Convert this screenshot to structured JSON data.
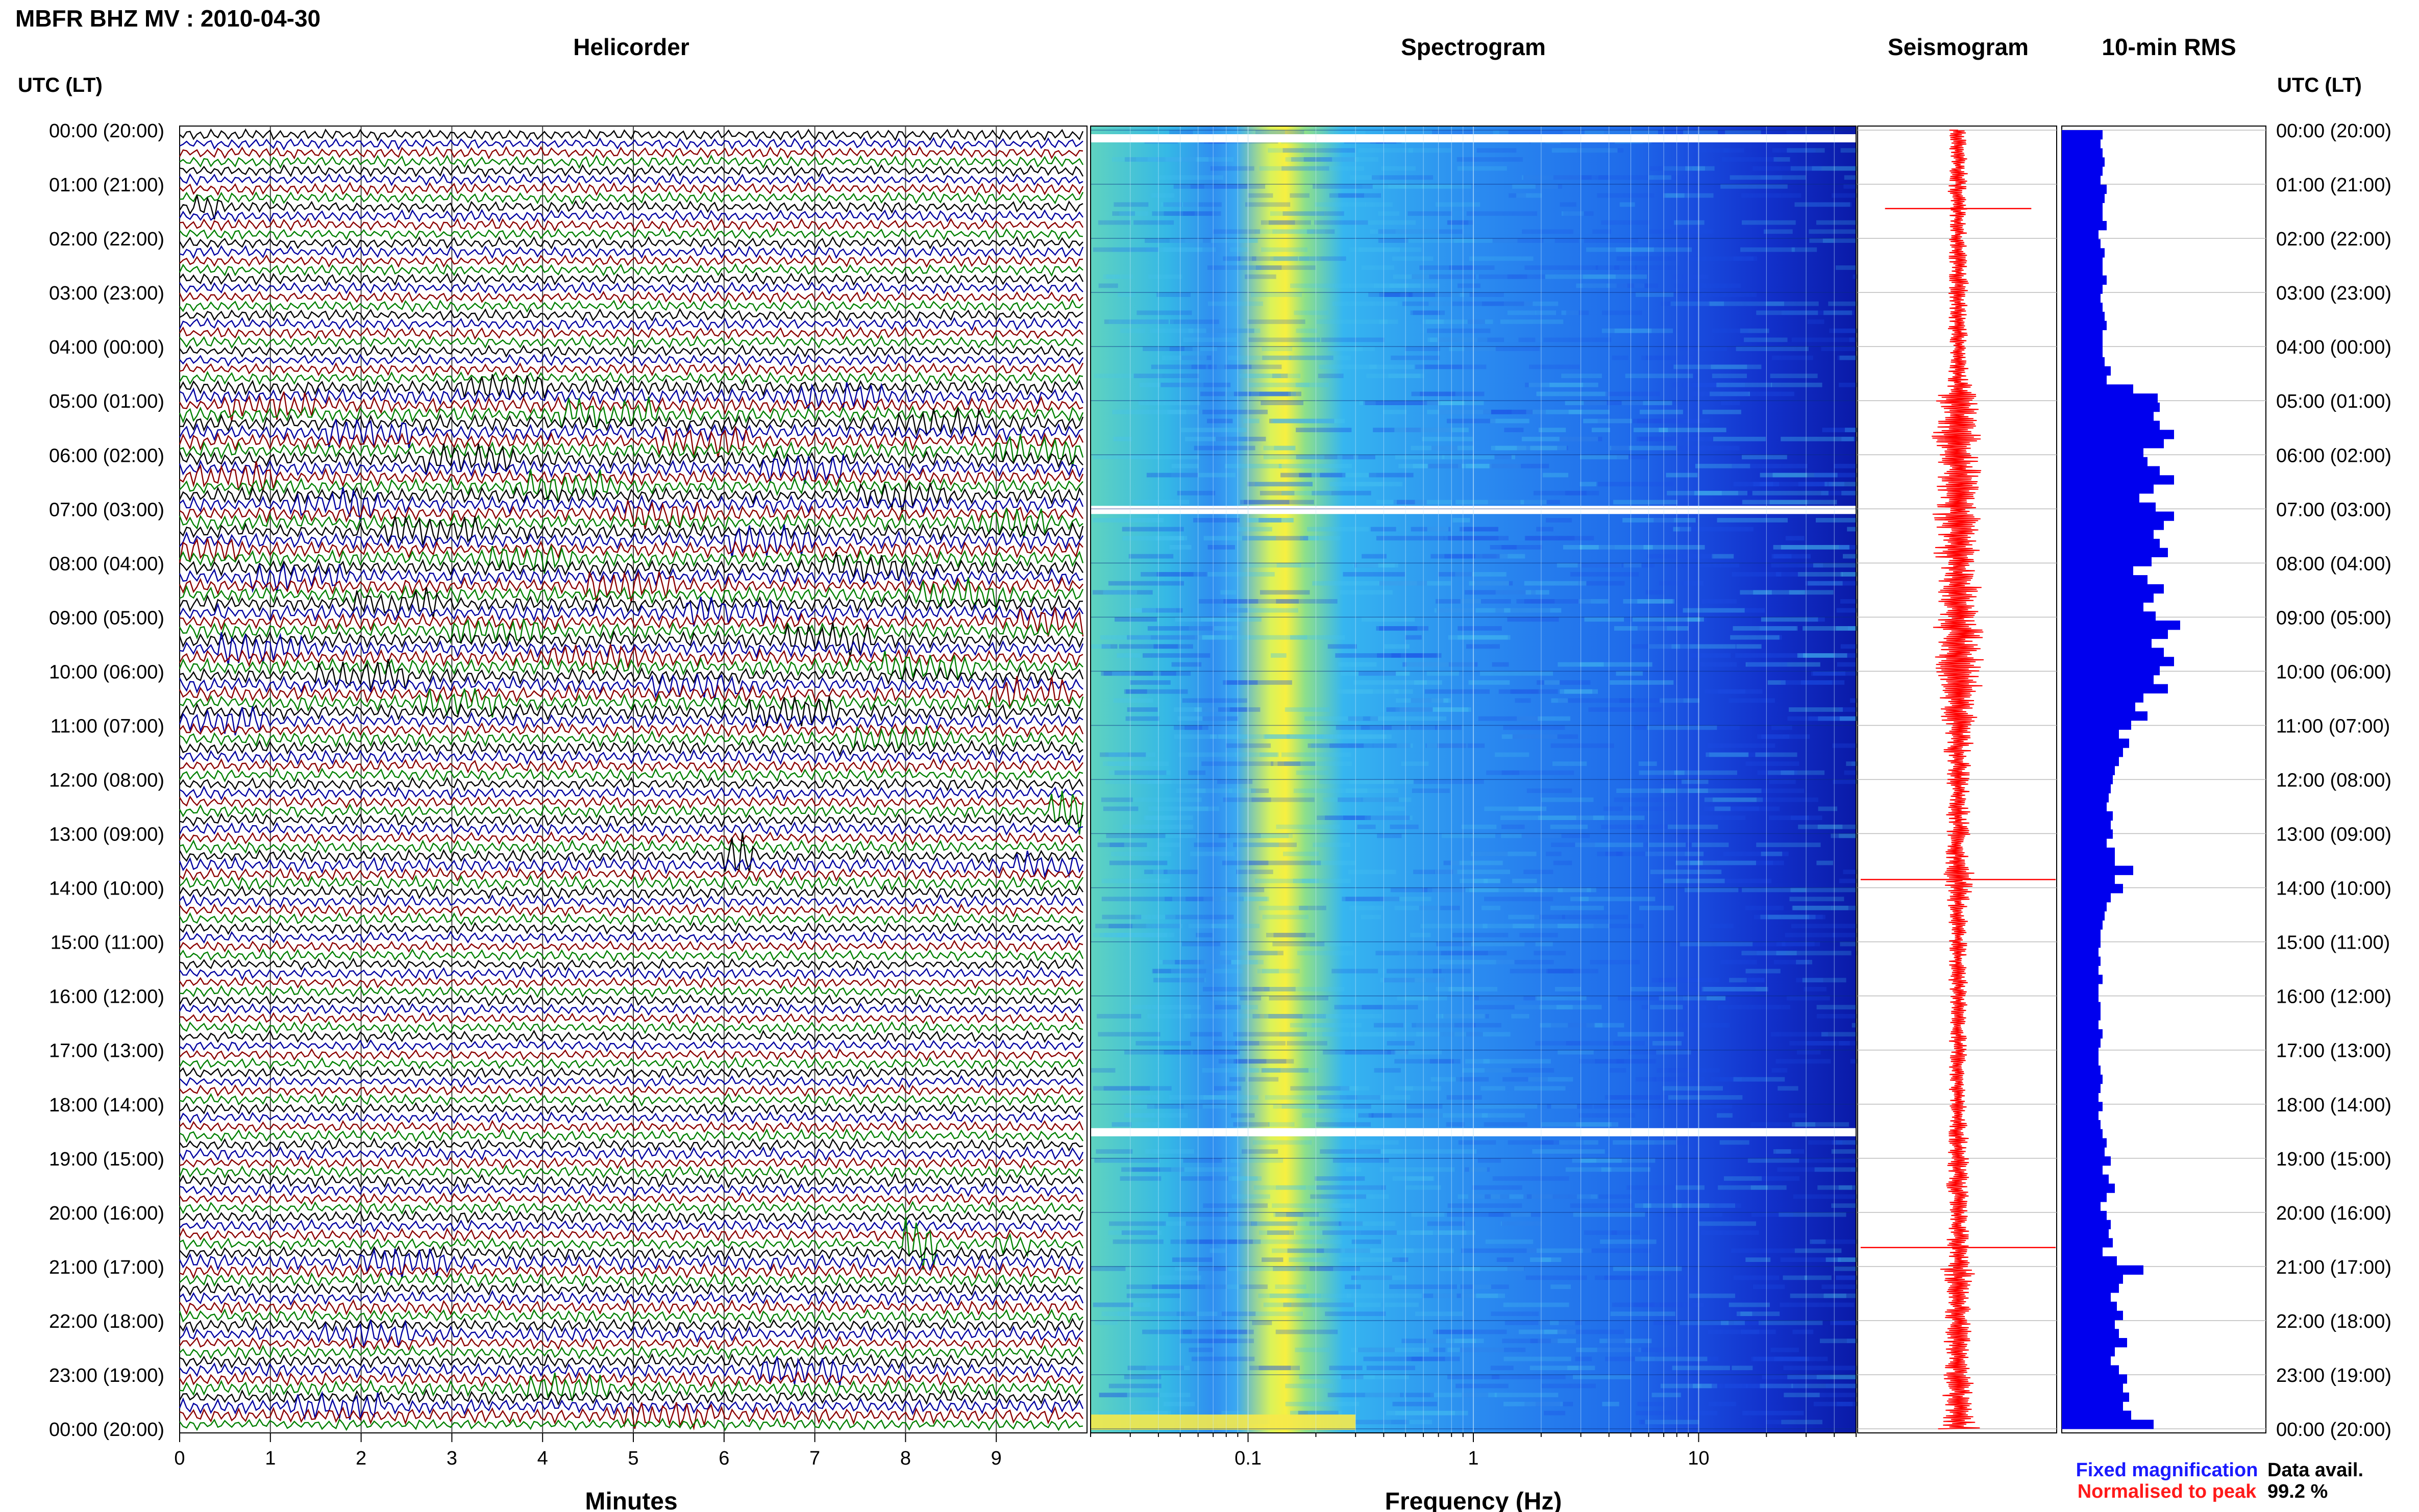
{
  "header": {
    "station_title": "MBFR BHZ MV : 2010-04-30",
    "utc_lt_left": "UTC (LT)",
    "utc_lt_right": "UTC (LT)"
  },
  "panels": {
    "helicorder": {
      "title": "Helicorder",
      "xlabel": "Minutes"
    },
    "spectrogram": {
      "title": "Spectrogram",
      "xlabel": "Frequency (Hz)"
    },
    "seismogram": {
      "title": "Seismogram"
    },
    "rms": {
      "title": "10-min RMS"
    }
  },
  "legend": {
    "fixed_magnification": "Fixed magnification",
    "normalised_to_peak": "Normalised to peak",
    "fixed_color": "#1a1aff",
    "normalised_color": "#ff1a1a"
  },
  "data_availability": {
    "label": "Data avail.",
    "value": "99.2 %"
  },
  "colors": {
    "trace_cycle": [
      "#000000",
      "#0000a0",
      "#8b0000",
      "#008000"
    ],
    "rms_bar": "#0000ee",
    "seismogram_trace": "#ff0000",
    "spectrogram_low": "#0000aa",
    "spectrogram_high": "#ffff00"
  },
  "chart_data": [
    {
      "type": "line",
      "name": "Helicorder",
      "title": "Helicorder",
      "xlabel": "Minutes",
      "xlim": [
        0,
        10
      ],
      "x_ticks": [
        0,
        1,
        2,
        3,
        4,
        5,
        6,
        7,
        8,
        9
      ],
      "rows_per_hour": 6,
      "hours": 24,
      "y_tick_labels": [
        "00:00 (20:00)",
        "01:00 (21:00)",
        "02:00 (22:00)",
        "03:00 (23:00)",
        "04:00 (00:00)",
        "05:00 (01:00)",
        "06:00 (02:00)",
        "07:00 (03:00)",
        "08:00 (04:00)",
        "09:00 (05:00)",
        "10:00 (06:00)",
        "11:00 (07:00)",
        "12:00 (08:00)",
        "13:00 (09:00)",
        "14:00 (10:00)",
        "15:00 (11:00)",
        "16:00 (12:00)",
        "17:00 (13:00)",
        "18:00 (14:00)",
        "19:00 (15:00)",
        "20:00 (16:00)",
        "21:00 (17:00)",
        "22:00 (18:00)",
        "23:00 (19:00)",
        "00:00 (20:00)"
      ],
      "grid": true
    },
    {
      "type": "heatmap",
      "name": "Spectrogram",
      "title": "Spectrogram",
      "xlabel": "Frequency (Hz)",
      "x_scale": "log",
      "xlim": [
        0.02,
        50
      ],
      "x_tick_labels": [
        "0.1",
        "1",
        "10"
      ],
      "peak_band_hz": 0.3,
      "data_gaps_utc": [
        "00:00",
        "07:00",
        "18:30"
      ],
      "grid": true
    },
    {
      "type": "line",
      "name": "Seismogram",
      "title": "Seismogram",
      "hours": 24,
      "envelope_rms": [
        0.2,
        0.19,
        0.2,
        0.21,
        0.2,
        0.19,
        0.22,
        0.21,
        0.2,
        0.2,
        0.22,
        0.18,
        0.19,
        0.21,
        0.2,
        0.2,
        0.22,
        0.2,
        0.19,
        0.2,
        0.21,
        0.22,
        0.2,
        0.2,
        0.2,
        0.21,
        0.24,
        0.22,
        0.35,
        0.47,
        0.48,
        0.45,
        0.48,
        0.55,
        0.5,
        0.4,
        0.42,
        0.48,
        0.55,
        0.45,
        0.38,
        0.46,
        0.55,
        0.5,
        0.45,
        0.48,
        0.52,
        0.44,
        0.35,
        0.42,
        0.5,
        0.45,
        0.4,
        0.46,
        0.58,
        0.52,
        0.44,
        0.5,
        0.55,
        0.48,
        0.45,
        0.52,
        0.4,
        0.36,
        0.42,
        0.34,
        0.28,
        0.33,
        0.3,
        0.28,
        0.26,
        0.25,
        0.24,
        0.23,
        0.22,
        0.25,
        0.24,
        0.25,
        0.22,
        0.26,
        0.26,
        0.35,
        0.26,
        0.3,
        0.24,
        0.22,
        0.21,
        0.2,
        0.19,
        0.19,
        0.18,
        0.19,
        0.18,
        0.2,
        0.18,
        0.18,
        0.19,
        0.19,
        0.18,
        0.2,
        0.19,
        0.18,
        0.18,
        0.19,
        0.2,
        0.19,
        0.18,
        0.2,
        0.18,
        0.19,
        0.2,
        0.22,
        0.21,
        0.24,
        0.2,
        0.23,
        0.26,
        0.22,
        0.19,
        0.22,
        0.24,
        0.23,
        0.25,
        0.2,
        0.27,
        0.4,
        0.3,
        0.28,
        0.24,
        0.27,
        0.3,
        0.26,
        0.28,
        0.32,
        0.26,
        0.24,
        0.28,
        0.32,
        0.3,
        0.33,
        0.3,
        0.34,
        0.45
      ],
      "spikes": [
        {
          "hour": 1.45,
          "amp": 0.75
        },
        {
          "hour": 13.85,
          "amp": 1.0
        },
        {
          "hour": 20.65,
          "amp": 1.0
        }
      ]
    },
    {
      "type": "bar",
      "name": "10-min RMS",
      "title": "10-min RMS",
      "orientation": "horizontal",
      "bin_minutes": 10,
      "values": [
        0.2,
        0.19,
        0.2,
        0.21,
        0.2,
        0.19,
        0.22,
        0.21,
        0.2,
        0.2,
        0.22,
        0.18,
        0.19,
        0.21,
        0.2,
        0.2,
        0.22,
        0.2,
        0.19,
        0.2,
        0.21,
        0.22,
        0.2,
        0.2,
        0.2,
        0.21,
        0.24,
        0.22,
        0.35,
        0.47,
        0.48,
        0.45,
        0.48,
        0.55,
        0.5,
        0.4,
        0.42,
        0.48,
        0.55,
        0.45,
        0.38,
        0.46,
        0.55,
        0.5,
        0.45,
        0.48,
        0.52,
        0.44,
        0.35,
        0.42,
        0.5,
        0.45,
        0.4,
        0.46,
        0.58,
        0.52,
        0.44,
        0.5,
        0.55,
        0.48,
        0.45,
        0.52,
        0.4,
        0.36,
        0.42,
        0.34,
        0.28,
        0.33,
        0.3,
        0.28,
        0.26,
        0.25,
        0.24,
        0.23,
        0.22,
        0.25,
        0.24,
        0.25,
        0.22,
        0.26,
        0.26,
        0.35,
        0.26,
        0.3,
        0.24,
        0.22,
        0.21,
        0.2,
        0.19,
        0.19,
        0.18,
        0.19,
        0.18,
        0.2,
        0.18,
        0.18,
        0.19,
        0.19,
        0.18,
        0.2,
        0.19,
        0.18,
        0.18,
        0.19,
        0.2,
        0.19,
        0.18,
        0.2,
        0.18,
        0.19,
        0.2,
        0.22,
        0.21,
        0.24,
        0.2,
        0.23,
        0.26,
        0.22,
        0.19,
        0.22,
        0.24,
        0.23,
        0.25,
        0.2,
        0.27,
        0.4,
        0.3,
        0.28,
        0.24,
        0.27,
        0.3,
        0.26,
        0.28,
        0.32,
        0.26,
        0.24,
        0.28,
        0.32,
        0.3,
        0.33,
        0.3,
        0.34,
        0.45
      ],
      "xlim": [
        0,
        1
      ],
      "grid": true
    }
  ]
}
